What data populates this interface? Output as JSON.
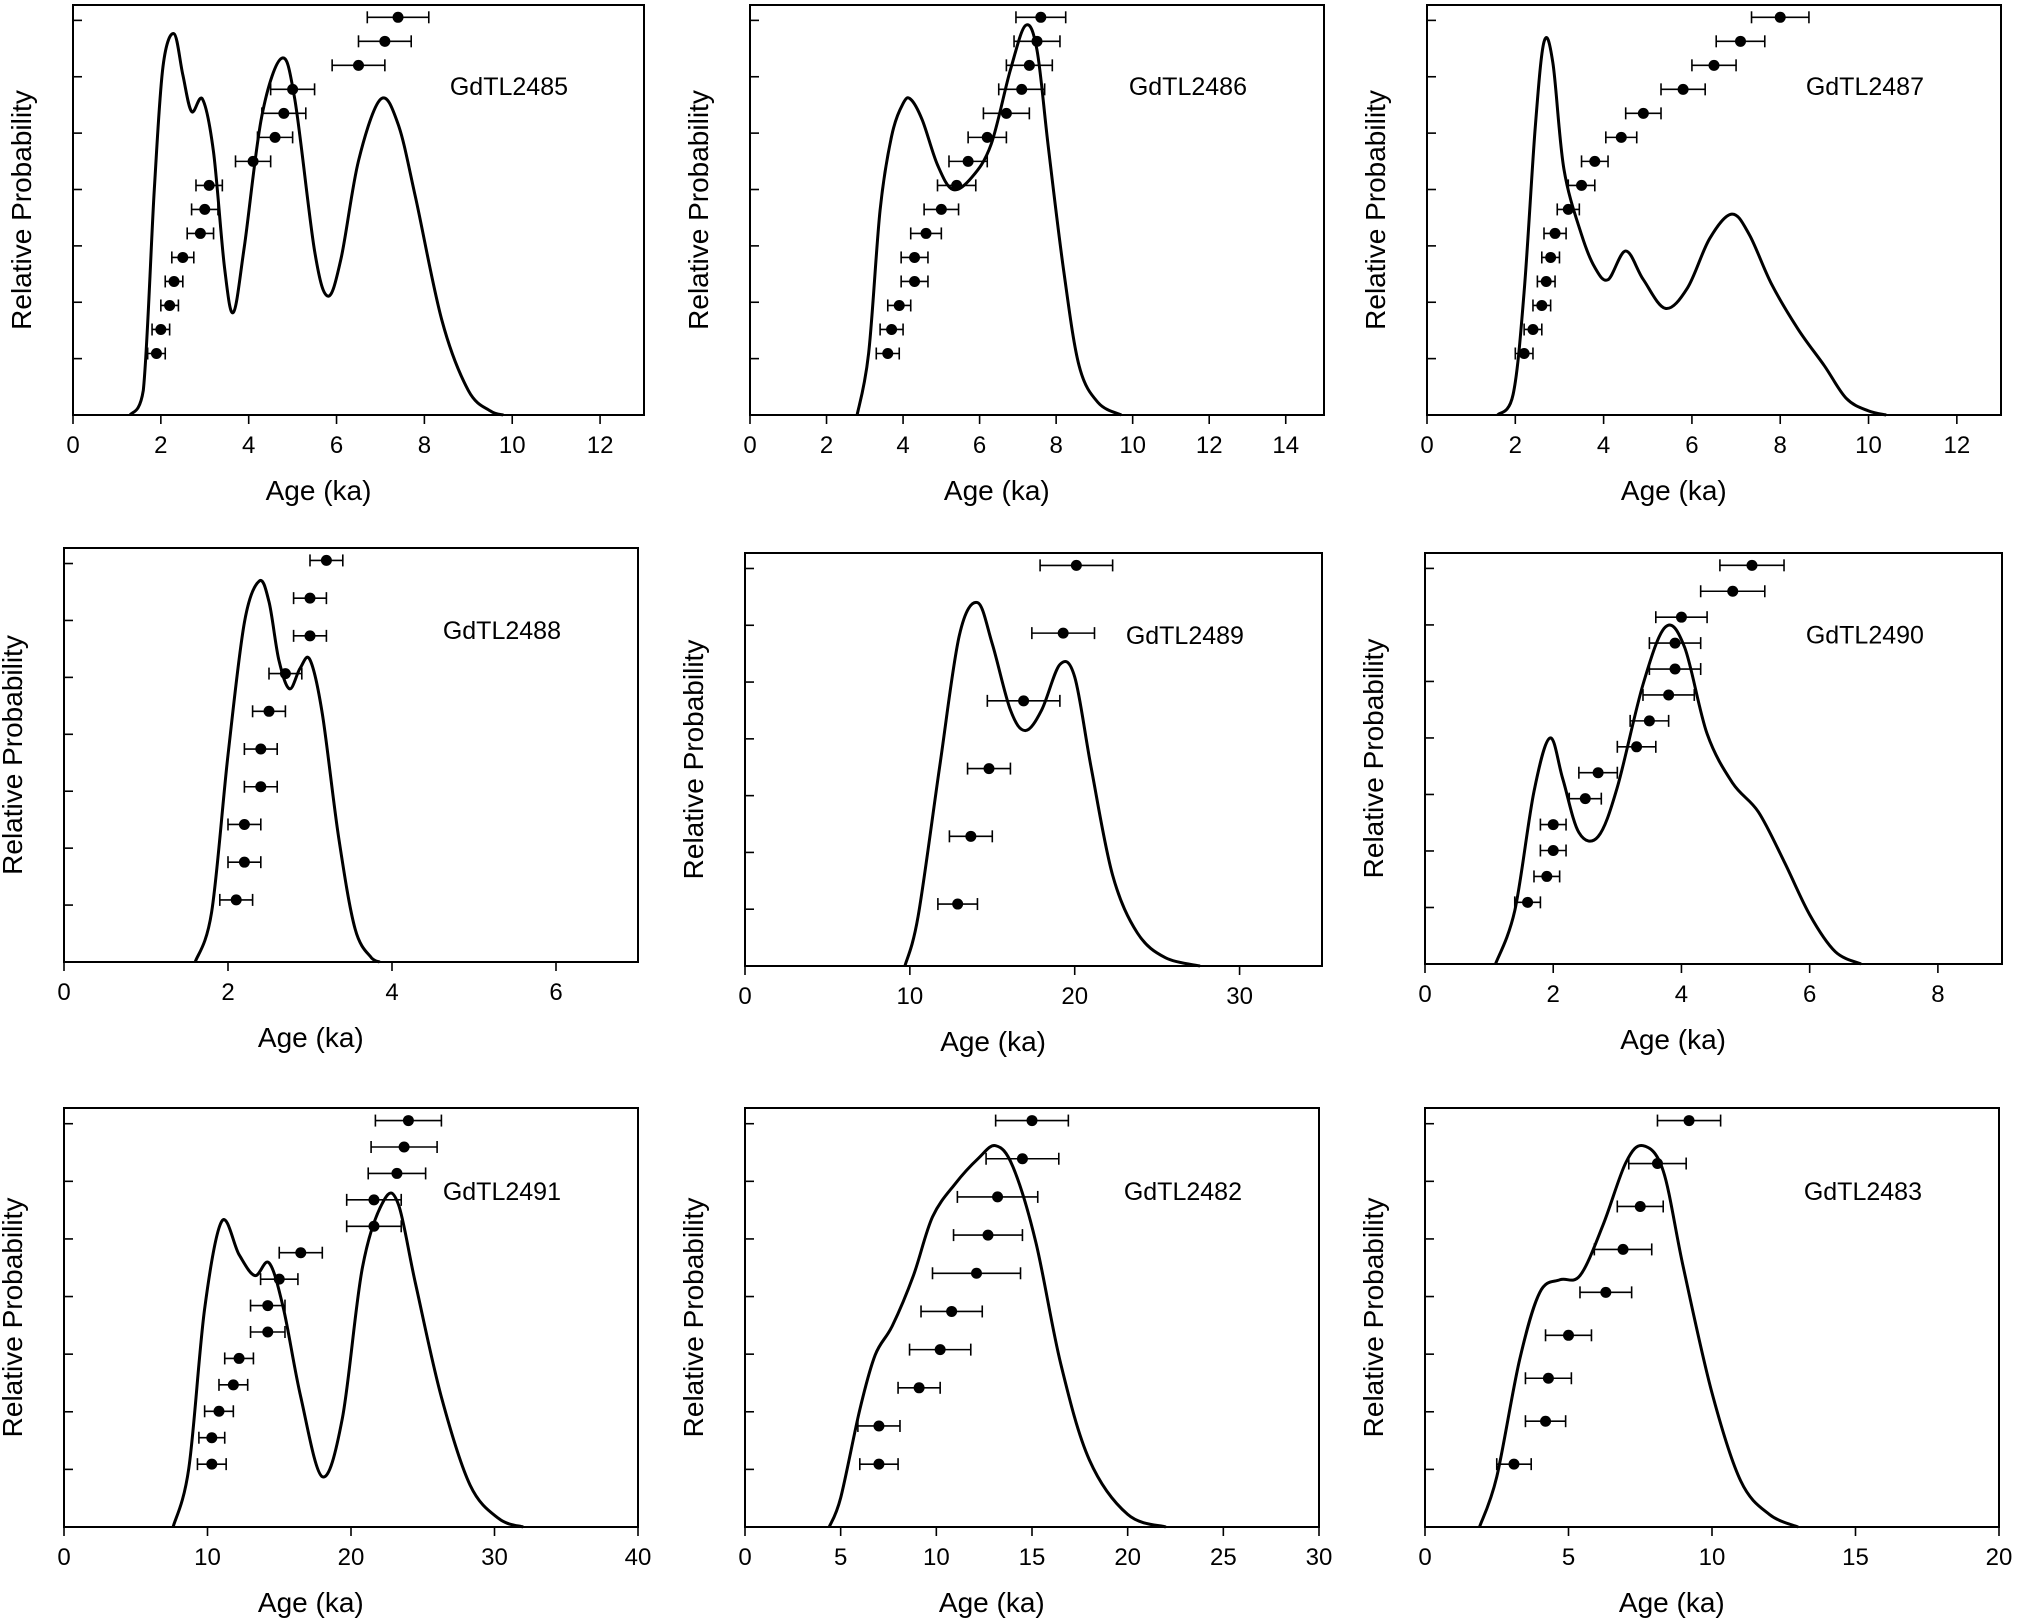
{
  "chart_data": [
    {
      "type": "scatter",
      "sample": "GdTL2485",
      "xlabel": "Age (ka)",
      "ylabel": "Relative Probability",
      "xlim": [
        0,
        13
      ],
      "xticks": [
        "0",
        "2",
        "4",
        "6",
        "8",
        "10",
        "12"
      ],
      "points": [
        {
          "age": 1.9,
          "err": 0.2
        },
        {
          "age": 2.0,
          "err": 0.2
        },
        {
          "age": 2.2,
          "err": 0.2
        },
        {
          "age": 2.3,
          "err": 0.2
        },
        {
          "age": 2.5,
          "err": 0.25
        },
        {
          "age": 2.9,
          "err": 0.3
        },
        {
          "age": 3.0,
          "err": 0.3
        },
        {
          "age": 3.1,
          "err": 0.3
        },
        {
          "age": 4.1,
          "err": 0.4
        },
        {
          "age": 4.6,
          "err": 0.4
        },
        {
          "age": 4.8,
          "err": 0.5
        },
        {
          "age": 5.0,
          "err": 0.5
        },
        {
          "age": 6.5,
          "err": 0.6
        },
        {
          "age": 7.1,
          "err": 0.6
        },
        {
          "age": 7.4,
          "err": 0.7
        }
      ],
      "density": [
        [
          1.3,
          0.0
        ],
        [
          1.6,
          0.06
        ],
        [
          1.85,
          0.55
        ],
        [
          2.05,
          0.85
        ],
        [
          2.3,
          0.93
        ],
        [
          2.5,
          0.83
        ],
        [
          2.7,
          0.74
        ],
        [
          2.95,
          0.77
        ],
        [
          3.2,
          0.64
        ],
        [
          3.45,
          0.36
        ],
        [
          3.65,
          0.25
        ],
        [
          3.9,
          0.41
        ],
        [
          4.3,
          0.73
        ],
        [
          4.75,
          0.87
        ],
        [
          5.05,
          0.77
        ],
        [
          5.5,
          0.4
        ],
        [
          5.8,
          0.29
        ],
        [
          6.1,
          0.38
        ],
        [
          6.5,
          0.62
        ],
        [
          7.0,
          0.77
        ],
        [
          7.4,
          0.71
        ],
        [
          7.8,
          0.53
        ],
        [
          8.4,
          0.23
        ],
        [
          9.0,
          0.06
        ],
        [
          9.5,
          0.01
        ],
        [
          9.8,
          0.0
        ]
      ]
    },
    {
      "type": "scatter",
      "sample": "GdTL2486",
      "xlabel": "Age (ka)",
      "ylabel": "Relative Probability",
      "xlim": [
        0,
        15
      ],
      "xticks": [
        "0",
        "2",
        "4",
        "6",
        "8",
        "10",
        "12",
        "14"
      ],
      "points": [
        {
          "age": 3.6,
          "err": 0.3
        },
        {
          "age": 3.7,
          "err": 0.3
        },
        {
          "age": 3.9,
          "err": 0.3
        },
        {
          "age": 4.3,
          "err": 0.35
        },
        {
          "age": 4.3,
          "err": 0.35
        },
        {
          "age": 4.6,
          "err": 0.4
        },
        {
          "age": 5.0,
          "err": 0.45
        },
        {
          "age": 5.4,
          "err": 0.5
        },
        {
          "age": 5.7,
          "err": 0.5
        },
        {
          "age": 6.2,
          "err": 0.5
        },
        {
          "age": 6.7,
          "err": 0.6
        },
        {
          "age": 7.1,
          "err": 0.6
        },
        {
          "age": 7.3,
          "err": 0.6
        },
        {
          "age": 7.5,
          "err": 0.6
        },
        {
          "age": 7.6,
          "err": 0.65
        }
      ],
      "density": [
        [
          2.8,
          0.0
        ],
        [
          3.1,
          0.15
        ],
        [
          3.4,
          0.5
        ],
        [
          3.7,
          0.68
        ],
        [
          4.0,
          0.76
        ],
        [
          4.2,
          0.77
        ],
        [
          4.5,
          0.72
        ],
        [
          4.9,
          0.61
        ],
        [
          5.3,
          0.55
        ],
        [
          5.8,
          0.58
        ],
        [
          6.3,
          0.66
        ],
        [
          6.8,
          0.84
        ],
        [
          7.2,
          0.95
        ],
        [
          7.5,
          0.89
        ],
        [
          7.8,
          0.65
        ],
        [
          8.2,
          0.35
        ],
        [
          8.6,
          0.12
        ],
        [
          9.1,
          0.03
        ],
        [
          9.7,
          0.0
        ]
      ]
    },
    {
      "type": "scatter",
      "sample": "GdTL2487",
      "xlabel": "Age (ka)",
      "ylabel": "Relative Probability",
      "xlim": [
        0,
        13
      ],
      "xticks": [
        "0",
        "2",
        "4",
        "6",
        "8",
        "10",
        "12"
      ],
      "points": [
        {
          "age": 2.2,
          "err": 0.2
        },
        {
          "age": 2.4,
          "err": 0.2
        },
        {
          "age": 2.6,
          "err": 0.2
        },
        {
          "age": 2.7,
          "err": 0.2
        },
        {
          "age": 2.8,
          "err": 0.2
        },
        {
          "age": 2.9,
          "err": 0.25
        },
        {
          "age": 3.2,
          "err": 0.25
        },
        {
          "age": 3.5,
          "err": 0.3
        },
        {
          "age": 3.8,
          "err": 0.3
        },
        {
          "age": 4.4,
          "err": 0.35
        },
        {
          "age": 4.9,
          "err": 0.4
        },
        {
          "age": 5.8,
          "err": 0.5
        },
        {
          "age": 6.5,
          "err": 0.5
        },
        {
          "age": 7.1,
          "err": 0.55
        },
        {
          "age": 8.0,
          "err": 0.65
        }
      ],
      "density": [
        [
          1.6,
          0.0
        ],
        [
          1.95,
          0.05
        ],
        [
          2.2,
          0.3
        ],
        [
          2.45,
          0.7
        ],
        [
          2.65,
          0.91
        ],
        [
          2.85,
          0.86
        ],
        [
          3.1,
          0.6
        ],
        [
          3.5,
          0.44
        ],
        [
          3.8,
          0.36
        ],
        [
          4.1,
          0.33
        ],
        [
          4.5,
          0.4
        ],
        [
          4.9,
          0.33
        ],
        [
          5.4,
          0.26
        ],
        [
          5.9,
          0.31
        ],
        [
          6.4,
          0.43
        ],
        [
          6.9,
          0.49
        ],
        [
          7.3,
          0.44
        ],
        [
          7.8,
          0.32
        ],
        [
          8.4,
          0.21
        ],
        [
          9.0,
          0.12
        ],
        [
          9.5,
          0.04
        ],
        [
          10.0,
          0.01
        ],
        [
          10.4,
          0.0
        ]
      ]
    },
    {
      "type": "scatter",
      "sample": "GdTL2488",
      "xlabel": "Age (ka)",
      "ylabel": "Relative Probability",
      "xlim": [
        0,
        7
      ],
      "xticks": [
        "0",
        "2",
        "4",
        "6"
      ],
      "points": [
        {
          "age": 2.1,
          "err": 0.2
        },
        {
          "age": 2.2,
          "err": 0.2
        },
        {
          "age": 2.2,
          "err": 0.2
        },
        {
          "age": 2.4,
          "err": 0.2
        },
        {
          "age": 2.4,
          "err": 0.2
        },
        {
          "age": 2.5,
          "err": 0.2
        },
        {
          "age": 2.7,
          "err": 0.2
        },
        {
          "age": 3.0,
          "err": 0.2
        },
        {
          "age": 3.0,
          "err": 0.2
        },
        {
          "age": 3.2,
          "err": 0.2
        }
      ],
      "density": [
        [
          1.6,
          0.0
        ],
        [
          1.8,
          0.12
        ],
        [
          2.0,
          0.5
        ],
        [
          2.2,
          0.82
        ],
        [
          2.38,
          0.92
        ],
        [
          2.5,
          0.87
        ],
        [
          2.62,
          0.73
        ],
        [
          2.75,
          0.66
        ],
        [
          2.88,
          0.71
        ],
        [
          3.0,
          0.73
        ],
        [
          3.15,
          0.6
        ],
        [
          3.35,
          0.3
        ],
        [
          3.55,
          0.08
        ],
        [
          3.75,
          0.01
        ],
        [
          3.85,
          0.0
        ]
      ]
    },
    {
      "type": "scatter",
      "sample": "GdTL2489",
      "xlabel": "Age (ka)",
      "ylabel": "Relative Probability",
      "xlim": [
        0,
        35
      ],
      "xticks": [
        "0",
        "10",
        "20",
        "30"
      ],
      "points": [
        {
          "age": 12.9,
          "err": 1.2
        },
        {
          "age": 13.7,
          "err": 1.3
        },
        {
          "age": 14.8,
          "err": 1.3
        },
        {
          "age": 16.9,
          "err": 2.2
        },
        {
          "age": 19.3,
          "err": 1.9
        },
        {
          "age": 20.1,
          "err": 2.2
        }
      ],
      "density": [
        [
          9.7,
          0.0
        ],
        [
          10.5,
          0.12
        ],
        [
          11.8,
          0.48
        ],
        [
          13.0,
          0.8
        ],
        [
          14.1,
          0.88
        ],
        [
          15.0,
          0.78
        ],
        [
          16.1,
          0.62
        ],
        [
          17.0,
          0.57
        ],
        [
          18.0,
          0.62
        ],
        [
          19.1,
          0.73
        ],
        [
          20.0,
          0.7
        ],
        [
          21.0,
          0.48
        ],
        [
          22.3,
          0.22
        ],
        [
          23.8,
          0.08
        ],
        [
          25.5,
          0.02
        ],
        [
          27.6,
          0.0
        ]
      ]
    },
    {
      "type": "scatter",
      "sample": "GdTL2490",
      "xlabel": "Age (ka)",
      "ylabel": "Relative Probability",
      "xlim": [
        0,
        9
      ],
      "xticks": [
        "0",
        "2",
        "4",
        "6",
        "8"
      ],
      "points": [
        {
          "age": 1.6,
          "err": 0.2
        },
        {
          "age": 1.9,
          "err": 0.2
        },
        {
          "age": 2.0,
          "err": 0.2
        },
        {
          "age": 2.0,
          "err": 0.2
        },
        {
          "age": 2.5,
          "err": 0.25
        },
        {
          "age": 2.7,
          "err": 0.3
        },
        {
          "age": 3.3,
          "err": 0.3
        },
        {
          "age": 3.5,
          "err": 0.3
        },
        {
          "age": 3.8,
          "err": 0.4
        },
        {
          "age": 3.9,
          "err": 0.4
        },
        {
          "age": 3.9,
          "err": 0.4
        },
        {
          "age": 4.0,
          "err": 0.4
        },
        {
          "age": 4.8,
          "err": 0.5
        },
        {
          "age": 5.1,
          "err": 0.5
        }
      ],
      "density": [
        [
          1.1,
          0.0
        ],
        [
          1.4,
          0.13
        ],
        [
          1.7,
          0.42
        ],
        [
          1.95,
          0.55
        ],
        [
          2.15,
          0.45
        ],
        [
          2.4,
          0.32
        ],
        [
          2.7,
          0.31
        ],
        [
          3.0,
          0.43
        ],
        [
          3.4,
          0.68
        ],
        [
          3.75,
          0.82
        ],
        [
          4.05,
          0.77
        ],
        [
          4.4,
          0.56
        ],
        [
          4.8,
          0.44
        ],
        [
          5.2,
          0.37
        ],
        [
          5.6,
          0.25
        ],
        [
          6.0,
          0.12
        ],
        [
          6.4,
          0.03
        ],
        [
          6.8,
          0.0
        ]
      ]
    },
    {
      "type": "scatter",
      "sample": "GdTL2491",
      "xlabel": "Age (ka)",
      "ylabel": "Relative Probability",
      "xlim": [
        0,
        40
      ],
      "xticks": [
        "0",
        "10",
        "20",
        "30",
        "40"
      ],
      "points": [
        {
          "age": 10.3,
          "err": 1.0
        },
        {
          "age": 10.3,
          "err": 0.9
        },
        {
          "age": 10.8,
          "err": 1.0
        },
        {
          "age": 11.8,
          "err": 1.0
        },
        {
          "age": 12.2,
          "err": 1.0
        },
        {
          "age": 14.2,
          "err": 1.2
        },
        {
          "age": 14.2,
          "err": 1.2
        },
        {
          "age": 15.0,
          "err": 1.3
        },
        {
          "age": 16.5,
          "err": 1.5
        },
        {
          "age": 21.6,
          "err": 1.9
        },
        {
          "age": 21.6,
          "err": 1.9
        },
        {
          "age": 23.2,
          "err": 2.0
        },
        {
          "age": 23.7,
          "err": 2.3
        },
        {
          "age": 24.0,
          "err": 2.3
        }
      ],
      "density": [
        [
          7.6,
          0.0
        ],
        [
          8.7,
          0.14
        ],
        [
          9.8,
          0.52
        ],
        [
          11.0,
          0.73
        ],
        [
          12.2,
          0.65
        ],
        [
          13.3,
          0.6
        ],
        [
          14.3,
          0.63
        ],
        [
          15.3,
          0.52
        ],
        [
          16.5,
          0.31
        ],
        [
          18.0,
          0.12
        ],
        [
          19.4,
          0.26
        ],
        [
          20.8,
          0.62
        ],
        [
          22.3,
          0.78
        ],
        [
          23.3,
          0.77
        ],
        [
          24.5,
          0.58
        ],
        [
          26.3,
          0.31
        ],
        [
          28.3,
          0.1
        ],
        [
          30.3,
          0.02
        ],
        [
          32.0,
          0.0
        ]
      ]
    },
    {
      "type": "scatter",
      "sample": "GdTL2482",
      "xlabel": "Age (ka)",
      "ylabel": "Relative Probability",
      "xlim": [
        0,
        30
      ],
      "xticks": [
        "0",
        "5",
        "10",
        "15",
        "20",
        "25",
        "30"
      ],
      "points": [
        {
          "age": 7.0,
          "err": 1.0
        },
        {
          "age": 7.0,
          "err": 1.1
        },
        {
          "age": 9.1,
          "err": 1.1
        },
        {
          "age": 10.2,
          "err": 1.6
        },
        {
          "age": 10.8,
          "err": 1.6
        },
        {
          "age": 12.1,
          "err": 2.3
        },
        {
          "age": 12.7,
          "err": 1.8
        },
        {
          "age": 13.2,
          "err": 2.1
        },
        {
          "age": 14.5,
          "err": 1.9
        },
        {
          "age": 15.0,
          "err": 1.9
        }
      ],
      "density": [
        [
          4.4,
          0.0
        ],
        [
          5.0,
          0.07
        ],
        [
          6.0,
          0.28
        ],
        [
          6.8,
          0.41
        ],
        [
          7.7,
          0.48
        ],
        [
          8.8,
          0.6
        ],
        [
          9.8,
          0.74
        ],
        [
          11.0,
          0.82
        ],
        [
          12.2,
          0.88
        ],
        [
          13.1,
          0.91
        ],
        [
          14.0,
          0.86
        ],
        [
          15.2,
          0.68
        ],
        [
          16.5,
          0.39
        ],
        [
          18.0,
          0.16
        ],
        [
          20.0,
          0.03
        ],
        [
          22.0,
          0.0
        ]
      ]
    },
    {
      "type": "scatter",
      "sample": "GdTL2483",
      "xlabel": "Age (ka)",
      "ylabel": "Relative Probability",
      "xlim": [
        0,
        20
      ],
      "xticks": [
        "0",
        "5",
        "10",
        "15",
        "20"
      ],
      "points": [
        {
          "age": 3.1,
          "err": 0.6
        },
        {
          "age": 4.2,
          "err": 0.7
        },
        {
          "age": 4.3,
          "err": 0.8
        },
        {
          "age": 5.0,
          "err": 0.8
        },
        {
          "age": 6.3,
          "err": 0.9
        },
        {
          "age": 6.9,
          "err": 1.0
        },
        {
          "age": 7.5,
          "err": 0.8
        },
        {
          "age": 8.1,
          "err": 1.0
        },
        {
          "age": 9.2,
          "err": 1.1
        }
      ],
      "density": [
        [
          1.9,
          0.0
        ],
        [
          2.5,
          0.12
        ],
        [
          3.3,
          0.4
        ],
        [
          4.0,
          0.56
        ],
        [
          4.7,
          0.59
        ],
        [
          5.4,
          0.6
        ],
        [
          6.2,
          0.72
        ],
        [
          7.0,
          0.87
        ],
        [
          7.6,
          0.91
        ],
        [
          8.3,
          0.85
        ],
        [
          9.0,
          0.62
        ],
        [
          10.0,
          0.32
        ],
        [
          11.0,
          0.11
        ],
        [
          12.0,
          0.03
        ],
        [
          13.0,
          0.0
        ]
      ]
    }
  ]
}
